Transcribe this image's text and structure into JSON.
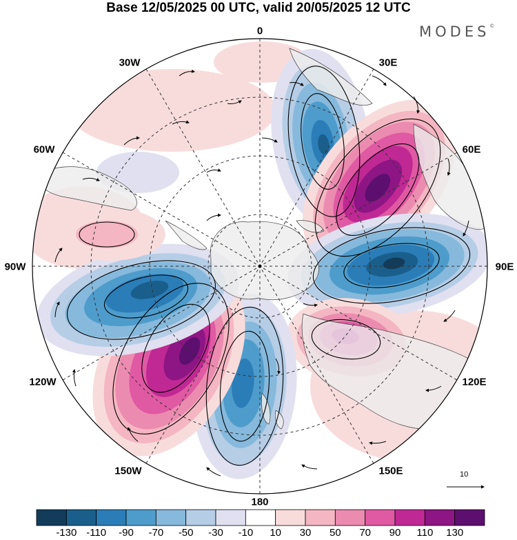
{
  "title": "Base 12/05/2025 00 UTC, valid 20/05/2025 12 UTC",
  "brand": "MODES",
  "brand_mark": "©",
  "longitude_labels": [
    "0",
    "30E",
    "60E",
    "90E",
    "120E",
    "150E",
    "180",
    "150W",
    "120W",
    "90W",
    "60W",
    "30W"
  ],
  "reference_vector": "10",
  "colorbar": {
    "colors": [
      "#133c5b",
      "#1a5f8c",
      "#2b7db8",
      "#4e9ccb",
      "#86b9dc",
      "#b6cde6",
      "#e0e0f0",
      "#ffffff",
      "#f8dcdc",
      "#f4b6c2",
      "#ec8bb0",
      "#e059a3",
      "#c02894",
      "#8d1584",
      "#5c0f6e"
    ],
    "ticks": [
      "-130",
      "-110",
      "-90",
      "-70",
      "-50",
      "-30",
      "-10",
      "10",
      "30",
      "50",
      "70",
      "90",
      "110",
      "130"
    ]
  },
  "map_colors": {
    "land": "#ececec",
    "grid": "#333333"
  }
}
